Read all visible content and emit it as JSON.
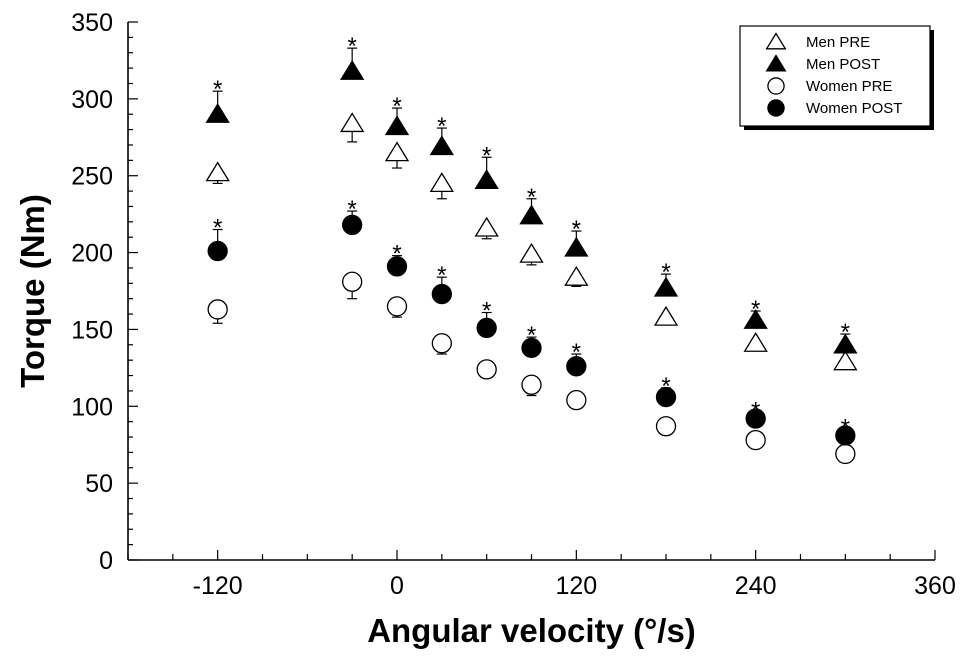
{
  "chart_data": {
    "type": "scatter",
    "xlabel": "Angular velocity (°/s)",
    "ylabel": "Torque (Nm)",
    "xlim": [
      -180,
      360
    ],
    "ylim": [
      0,
      350
    ],
    "x_ticks": [
      -120,
      0,
      120,
      240,
      360
    ],
    "x_tick_labels": [
      "-120",
      "0",
      "120",
      "240",
      "360"
    ],
    "y_ticks": [
      0,
      50,
      100,
      150,
      200,
      250,
      300,
      350
    ],
    "y_tick_labels": [
      "0",
      "50",
      "100",
      "150",
      "200",
      "250",
      "300",
      "350"
    ],
    "legend_position": "top-right",
    "significance_marker": "*",
    "series": [
      {
        "name": "Men PRE",
        "marker": "triangle-open",
        "x": [
          -120,
          -30,
          0,
          30,
          60,
          90,
          120,
          180,
          240,
          300
        ],
        "y": [
          252,
          284,
          265,
          245,
          216,
          199,
          184,
          158,
          141,
          129
        ],
        "error": [
          7,
          12,
          10,
          10,
          7,
          7,
          6,
          5,
          0,
          0
        ],
        "error_direction": "down"
      },
      {
        "name": "Men POST",
        "marker": "triangle-filled",
        "x": [
          -120,
          -30,
          0,
          30,
          60,
          90,
          120,
          180,
          240,
          300
        ],
        "y": [
          290,
          318,
          282,
          269,
          247,
          224,
          203,
          177,
          156,
          140
        ],
        "error": [
          15,
          15,
          12,
          12,
          15,
          11,
          11,
          9,
          6,
          7
        ],
        "error_direction": "up",
        "significant": [
          true,
          true,
          true,
          true,
          true,
          true,
          true,
          true,
          true,
          true
        ]
      },
      {
        "name": "Women PRE",
        "marker": "circle-open",
        "x": [
          -120,
          -30,
          0,
          30,
          60,
          90,
          120,
          180,
          240,
          300
        ],
        "y": [
          163,
          181,
          165,
          141,
          124,
          114,
          104,
          87,
          78,
          69
        ],
        "error": [
          9,
          11,
          7,
          7,
          0,
          7,
          0,
          0,
          0,
          0
        ],
        "error_direction": "down"
      },
      {
        "name": "Women POST",
        "marker": "circle-filled",
        "x": [
          -120,
          -30,
          0,
          30,
          60,
          90,
          120,
          180,
          240,
          300
        ],
        "y": [
          201,
          218,
          191,
          173,
          151,
          138,
          126,
          106,
          92,
          81
        ],
        "error": [
          14,
          9,
          7,
          11,
          10,
          7,
          8,
          6,
          4,
          4
        ],
        "error_direction": "up",
        "significant": [
          true,
          true,
          true,
          true,
          true,
          true,
          true,
          true,
          true,
          true
        ]
      }
    ]
  }
}
